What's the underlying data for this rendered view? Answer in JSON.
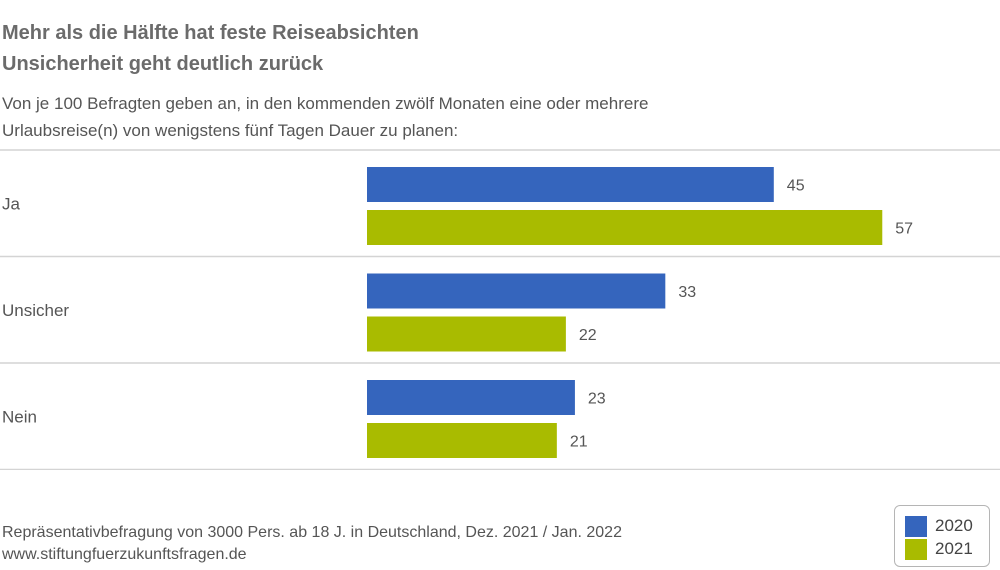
{
  "header": {
    "title_line1": "Mehr als die Hälfte hat feste Reiseabsichten",
    "title_line2": "Unsicherheit geht deutlich zurück",
    "subtitle_line1": "Von je 100 Befragten geben an, in den kommenden zwölf Monaten eine oder mehrere",
    "subtitle_line2": "Urlaubsreise(n) von wenigstens fünf Tagen Dauer zu planen:"
  },
  "footer": {
    "source_line1": "Repräsentativbefragung von 3000 Pers. ab 18 J. in Deutschland, Dez. 2021 / Jan. 2022",
    "source_line2": "www.stiftungfuerzukunftsfragen.de"
  },
  "legend": {
    "items": [
      {
        "label": "2020",
        "color": "#3565bd"
      },
      {
        "label": "2021",
        "color": "#a9bb00"
      }
    ],
    "placement": "bottom-right"
  },
  "chart_data": {
    "type": "bar",
    "orientation": "horizontal",
    "categories": [
      "Ja",
      "Unsicher",
      "Nein"
    ],
    "series": [
      {
        "name": "2020",
        "values": [
          45,
          33,
          23
        ],
        "color": "#3565bd"
      },
      {
        "name": "2021",
        "values": [
          57,
          22,
          21
        ],
        "color": "#a9bb00"
      }
    ],
    "title": "Mehr als die Hälfte hat feste Reiseabsichten",
    "xlabel": "",
    "ylabel": "",
    "data_labels": true,
    "grid": false
  }
}
